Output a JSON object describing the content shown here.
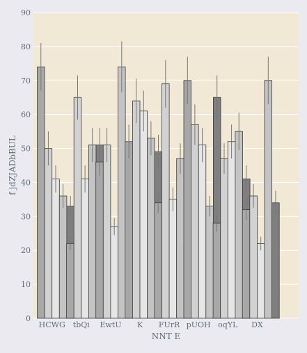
{
  "colors": {
    "figure_bg": "#eaeaf0",
    "plot_bg": "#f1e9d6",
    "grid": "#ffffff",
    "text": "#5f6e78",
    "bar_edge": "#3a3a3a",
    "error_bar": "#777777",
    "series": [
      "#a8a8a8",
      "#d2d2d2",
      "#e6e6e6",
      "#c4c4c4",
      "#7f7f7f"
    ]
  },
  "chart_data": {
    "type": "bar",
    "title": "",
    "xlabel": "NNT E",
    "ylabel": "f jdZJADbBUL",
    "ylim": [
      0,
      90
    ],
    "yticks": [
      0,
      10,
      20,
      30,
      40,
      50,
      60,
      70,
      80,
      90
    ],
    "grid": true,
    "legend": "none",
    "categories": [
      "HCWG",
      "tbQi",
      "EwtU",
      "K",
      "FUrR",
      "pUOH",
      "oqYL",
      "DX"
    ],
    "series": [
      {
        "values": [
          74,
          22,
          46,
          52,
          34,
          70,
          28,
          32
        ],
        "errors": [
          7,
          2,
          4,
          5,
          3,
          7,
          2.5,
          3
        ]
      },
      {
        "values": [
          50,
          65,
          51,
          64,
          69,
          57,
          47,
          36
        ],
        "errors": [
          5,
          6.5,
          5,
          6.5,
          7,
          6,
          4.5,
          3.5
        ]
      },
      {
        "values": [
          41,
          41,
          27,
          61,
          35,
          51,
          52,
          22
        ],
        "errors": [
          4,
          4,
          2.5,
          6,
          3.5,
          5,
          5,
          2
        ]
      },
      {
        "values": [
          36,
          51,
          74,
          53,
          47,
          33,
          55,
          70
        ],
        "errors": [
          3.5,
          5,
          7.5,
          5,
          4.5,
          3,
          5.5,
          7
        ]
      },
      {
        "values": [
          33,
          51,
          34,
          49,
          22,
          65,
          41,
          34
        ],
        "errors": [
          3,
          5,
          3.5,
          5,
          2,
          6.5,
          4,
          3.5
        ]
      }
    ]
  }
}
